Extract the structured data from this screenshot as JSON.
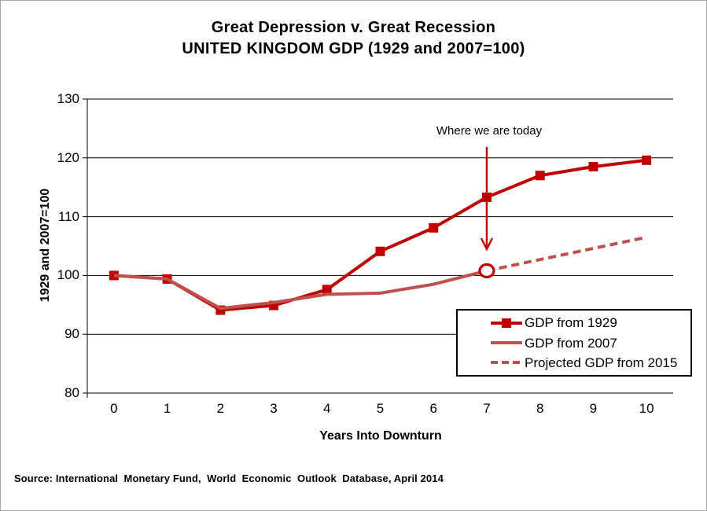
{
  "frame": {
    "border_color": "#a6a6a6",
    "background_color": "#ffffff"
  },
  "chart_data": {
    "type": "line",
    "title_lines": [
      "Great Depression v. Great Recession",
      "UNITED KINGDOM GDP (1929 and 2007=100)"
    ],
    "xlabel": "Years Into Downturn",
    "ylabel": "1929 and 2007=100",
    "x_ticks": [
      "0",
      "1",
      "2",
      "3",
      "4",
      "5",
      "6",
      "7",
      "8",
      "9",
      "10"
    ],
    "y_ticks": [
      130,
      120,
      110,
      100,
      90,
      80
    ],
    "ylim": [
      80,
      130
    ],
    "grid": "horizontal black gridlines at every 10 units",
    "legend_position": "boxed, inside plot area, bottom-right",
    "colors": {
      "gdp_1929": "#c00000",
      "gdp_2007": "#c0504d",
      "axis_and_grid": "#000000"
    },
    "series": [
      {
        "name": "GDP from 1929",
        "color": "#c00000",
        "style": "solid",
        "marker": "square",
        "x": [
          0,
          1,
          2,
          3,
          4,
          5,
          6,
          7,
          8,
          9,
          10
        ],
        "values": [
          100,
          99.4,
          94.1,
          94.9,
          97.6,
          104.1,
          108.1,
          113.3,
          117,
          118.5,
          119.6
        ]
      },
      {
        "name": "GDP from 2007",
        "color": "#c0504d",
        "style": "solid",
        "marker": "none",
        "x": [
          0,
          1,
          2,
          3,
          4,
          5,
          6,
          7
        ],
        "values": [
          100,
          99.4,
          94.4,
          95.4,
          96.8,
          97,
          98.5,
          100.8
        ]
      },
      {
        "name": "Projected GDP from 2015",
        "color": "#c0504d",
        "style": "dashed",
        "marker": "none",
        "x": [
          7,
          8,
          9,
          10
        ],
        "values": [
          100.8,
          102.7,
          104.6,
          106.5
        ]
      }
    ],
    "annotation": {
      "text": "Where we are today",
      "color": "#c00000",
      "arrow_x": 7,
      "points_to": {
        "x": 7,
        "value": 100.8
      },
      "marker": "open red circle on GDP from 2007 endpoint"
    }
  },
  "source_note": "Source: International  Monetary Fund,  World  Economic  Outlook  Database, April 2014"
}
